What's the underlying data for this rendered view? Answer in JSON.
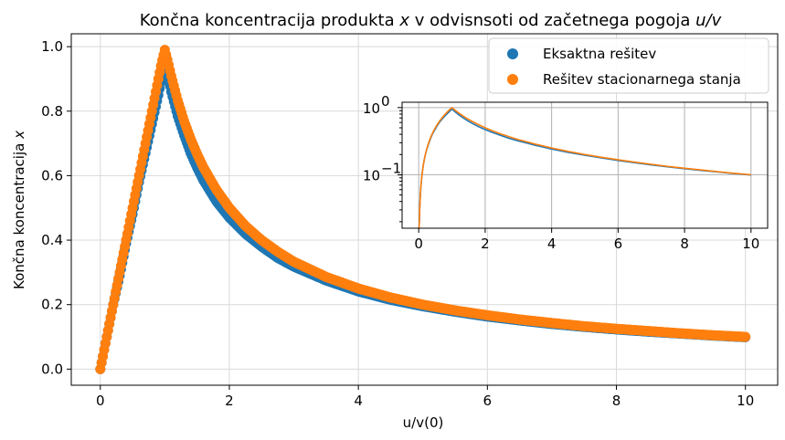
{
  "chart_data": [
    {
      "type": "scatter",
      "title_pre": "Končna koncentracija produkta ",
      "title_x": "x",
      "title_mid": " v odvisnsoti od začetnega pogoja ",
      "title_uv": "u/v",
      "xlabel": "u/v(0)",
      "ylabel_pre": "Končna koncentracija ",
      "ylabel_x": "x",
      "xlim": [
        -0.45,
        10.5
      ],
      "ylim": [
        -0.05,
        1.04
      ],
      "x_ticks": [
        0,
        2,
        4,
        6,
        8,
        10
      ],
      "x_tick_labels": [
        "0",
        "2",
        "4",
        "6",
        "8",
        "10"
      ],
      "y_ticks": [
        0.0,
        0.2,
        0.4,
        0.6,
        0.8,
        1.0
      ],
      "y_tick_labels": [
        "0.0",
        "0.2",
        "0.4",
        "0.6",
        "0.8",
        "1.0"
      ],
      "grid": true,
      "legend_position": "upper-right",
      "x": [
        0,
        0.05,
        0.1,
        0.15,
        0.2,
        0.3,
        0.4,
        0.5,
        0.6,
        0.7,
        0.8,
        0.9,
        0.95,
        1.0,
        1.05,
        1.1,
        1.2,
        1.3,
        1.4,
        1.5,
        1.6,
        1.8,
        2.0,
        2.25,
        2.5,
        2.75,
        3.0,
        3.5,
        4.0,
        4.5,
        5.0,
        5.5,
        6.0,
        6.5,
        7.0,
        7.5,
        8.0,
        8.5,
        9.0,
        9.5,
        10.0
      ],
      "series": [
        {
          "name": "Eksaktna rešitev",
          "color": "#1f77b4",
          "values": [
            0.0,
            0.05,
            0.1,
            0.15,
            0.2,
            0.29,
            0.39,
            0.48,
            0.58,
            0.67,
            0.76,
            0.85,
            0.9,
            0.945,
            0.905,
            0.86,
            0.785,
            0.725,
            0.67,
            0.625,
            0.585,
            0.52,
            0.47,
            0.42,
            0.38,
            0.345,
            0.318,
            0.275,
            0.241,
            0.215,
            0.195,
            0.178,
            0.163,
            0.151,
            0.14,
            0.131,
            0.123,
            0.116,
            0.11,
            0.104,
            0.099
          ]
        },
        {
          "name": "Rešitev stacionarnega stanja",
          "color": "#ff7f0e",
          "values": [
            0.0,
            0.05,
            0.1,
            0.15,
            0.2,
            0.3,
            0.4,
            0.5,
            0.6,
            0.7,
            0.8,
            0.9,
            0.95,
            0.99,
            0.952,
            0.909,
            0.833,
            0.769,
            0.714,
            0.667,
            0.625,
            0.556,
            0.5,
            0.444,
            0.4,
            0.364,
            0.333,
            0.286,
            0.25,
            0.222,
            0.2,
            0.182,
            0.167,
            0.154,
            0.143,
            0.133,
            0.125,
            0.118,
            0.111,
            0.105,
            0.1
          ]
        }
      ]
    },
    {
      "type": "line",
      "inset": true,
      "yscale": "log",
      "xlim": [
        -0.5,
        10.5
      ],
      "ylim": [
        0.016,
        1.2
      ],
      "x_ticks": [
        0,
        2,
        4,
        6,
        8,
        10
      ],
      "x_tick_labels": [
        "0",
        "2",
        "4",
        "6",
        "8",
        "10"
      ],
      "y_ticks": [
        0.1,
        1.0
      ],
      "y_tick_labels": [
        {
          "base": "10",
          "exp": "−1"
        },
        {
          "base": "10",
          "exp": "0"
        }
      ],
      "grid": true
    }
  ]
}
